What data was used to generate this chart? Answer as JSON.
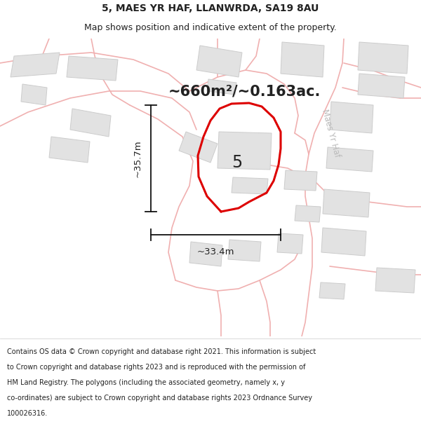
{
  "title": "5, MAES YR HAF, LLANWRDA, SA19 8AU",
  "subtitle": "Map shows position and indicative extent of the property.",
  "area_label": "~660m²/~0.163ac.",
  "width_label": "~33.4m",
  "height_label": "~35.7m",
  "plot_number": "5",
  "road_label": "Maes Yr Haf",
  "footer_text": "Contains OS data © Crown copyright and database right 2021. This information is subject to Crown copyright and database rights 2023 and is reproduced with the permission of HM Land Registry. The polygons (including the associated geometry, namely x, y co-ordinates) are subject to Crown copyright and database rights 2023 Ordnance Survey 100026316.",
  "bg_color": "#ffffff",
  "map_bg": "#f8f8f8",
  "road_color": "#f0b0b0",
  "building_color": "#e2e2e2",
  "building_edge": "#cccccc",
  "plot_outline_color": "#dd0000",
  "dim_line_color": "#111111",
  "text_color": "#222222",
  "road_label_color": "#bbbbbb"
}
